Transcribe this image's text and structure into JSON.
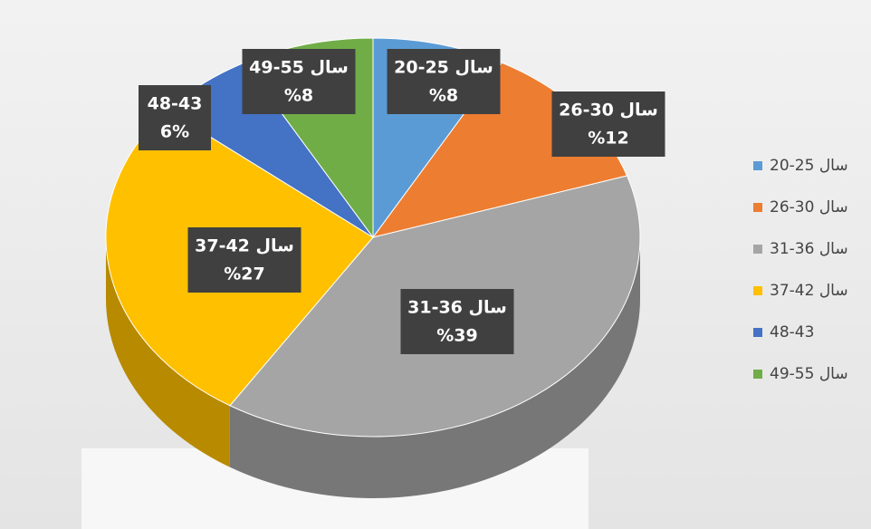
{
  "chart_data": {
    "type": "pie",
    "categories": [
      "20-25 سال",
      "26-30 سال",
      "31-36 سال",
      "37-42 سال",
      "48-43",
      "49-55 سال"
    ],
    "values": [
      8,
      12,
      39,
      27,
      6,
      8
    ],
    "value_labels": [
      "%8",
      "%12",
      "%39",
      "%27",
      "6%",
      "%8"
    ],
    "colors": [
      "#5b9bd5",
      "#ed7d31",
      "#a5a5a5",
      "#ffc000",
      "#4472c4",
      "#70ad47"
    ],
    "legend": "right"
  }
}
